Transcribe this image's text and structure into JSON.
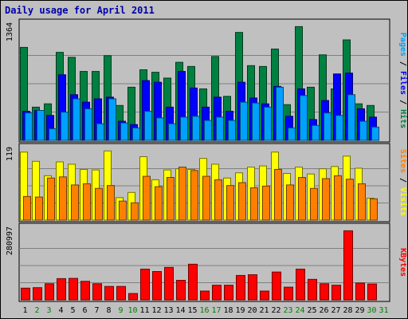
{
  "title": "Daily usage for April 2011",
  "chart_data": {
    "type": "bar",
    "title": "Daily usage for April 2011",
    "categories": [
      "1",
      "2",
      "3",
      "4",
      "5",
      "6",
      "7",
      "8",
      "9",
      "10",
      "11",
      "12",
      "13",
      "14",
      "15",
      "16",
      "17",
      "18",
      "19",
      "20",
      "21",
      "22",
      "23",
      "24",
      "25",
      "26",
      "27",
      "28",
      "29",
      "30",
      "31"
    ],
    "weekend_days": [
      "2",
      "3",
      "9",
      "10",
      "16",
      "17",
      "23",
      "24",
      "30",
      "31"
    ],
    "panels": [
      {
        "name": "pages_files_hits",
        "max_label": "1364",
        "max": 1364,
        "right_labels": [
          {
            "text": "Pages",
            "color": "#00a0ff"
          },
          {
            "text": " / ",
            "color": "#000000"
          },
          {
            "text": "Files",
            "color": "#0000ff"
          },
          {
            "text": " / ",
            "color": "#000000"
          },
          {
            "text": "Hits",
            "color": "#008040"
          }
        ],
        "series": [
          {
            "name": "Hits",
            "color": "#008040",
            "values": [
              1120,
              400,
              440,
              1060,
              1000,
              830,
              830,
              1020,
              420,
              640,
              850,
              820,
              750,
              940,
              890,
              620,
              1010,
              530,
              1300,
              900,
              890,
              1100,
              430,
              1370,
              640,
              1030,
              620,
              1210,
              440,
              420,
              0
            ]
          },
          {
            "name": "Files",
            "color": "#0000ff",
            "values": [
              350,
              360,
              300,
              790,
              550,
              460,
              500,
              520,
              230,
              190,
              720,
              700,
              400,
              830,
              630,
              400,
              520,
              350,
              700,
              510,
              440,
              650,
              290,
              620,
              250,
              480,
              800,
              810,
              380,
              280,
              0
            ]
          },
          {
            "name": "Pages",
            "color": "#00a0ff",
            "values": [
              330,
              360,
              140,
              340,
              500,
              380,
              200,
              500,
              210,
              150,
              350,
              270,
              200,
              280,
              290,
              240,
              280,
              240,
              460,
              450,
              400,
              640,
              150,
              540,
              180,
              330,
              300,
              550,
              230,
              160,
              0
            ]
          }
        ]
      },
      {
        "name": "visits_sites",
        "max_label": "119",
        "max": 119,
        "right_labels": [
          {
            "text": "Sites",
            "color": "#ff8000"
          },
          {
            "text": " / ",
            "color": "#000000"
          },
          {
            "text": "Visits",
            "color": "#ffff00"
          }
        ],
        "series": [
          {
            "name": "Visits",
            "color": "#ffff00",
            "values": [
              118,
              102,
              77,
              101,
              97,
              88,
              87,
              120,
              39,
              48,
              110,
              70,
              87,
              89,
              88,
              107,
              97,
              73,
              82,
              92,
              94,
              118,
              81,
              92,
              80,
              89,
              93,
              111,
              90,
              38,
              0
            ]
          },
          {
            "name": "Sites",
            "color": "#ff8000",
            "values": [
              41,
              40,
              73,
              75,
              61,
              63,
              55,
              60,
              33,
              30,
              76,
              58,
              74,
              92,
              86,
              76,
              70,
              60,
              65,
              56,
              59,
              88,
              61,
              74,
              55,
              72,
              77,
              71,
              63,
              37,
              0
            ]
          }
        ]
      },
      {
        "name": "kbytes",
        "max_label": "280997",
        "max": 280997,
        "right_labels": [
          {
            "text": "KBytes",
            "color": "#ff0000"
          }
        ],
        "series": [
          {
            "name": "KBytes",
            "color": "#ff0000",
            "values": [
              48000,
              50000,
              66000,
              87000,
              88000,
              76000,
              66000,
              55000,
              55000,
              26000,
              126000,
              116000,
              133000,
              80000,
              146000,
              36000,
              60000,
              60000,
              100000,
              103000,
              36000,
              114000,
              52000,
              126000,
              84000,
              66000,
              60000,
              283000,
              69000,
              65000,
              0
            ]
          }
        ]
      }
    ]
  }
}
